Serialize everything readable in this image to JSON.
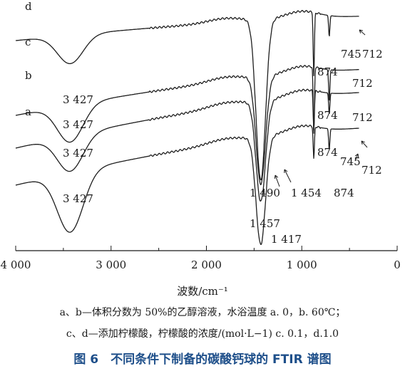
{
  "chart_data": {
    "type": "line",
    "title": "图 6　不同条件下制备的碳酸钙球的 FTIR 谱图",
    "xlabel": "波数/cm⁻¹",
    "ylabel": "",
    "xlim": [
      4000,
      0
    ],
    "x_ticks": [
      "4 000",
      "3 000",
      "2 000",
      "1 000",
      "0"
    ],
    "x_tick_values": [
      4000,
      3000,
      2000,
      1000,
      0
    ],
    "grid": false,
    "series": [
      {
        "name": "a",
        "peak_labels": [
          {
            "text": "3 427",
            "x": 3427
          },
          {
            "text": "1 417",
            "x": 1417
          },
          {
            "text": "874",
            "x": 874
          },
          {
            "text": "745",
            "x": 745
          },
          {
            "text": "712",
            "x": 712
          }
        ]
      },
      {
        "name": "b",
        "peak_labels": [
          {
            "text": "3 427",
            "x": 3427
          },
          {
            "text": "1 457",
            "x": 1457
          },
          {
            "text": "874",
            "x": 874
          },
          {
            "text": "712",
            "x": 712
          }
        ]
      },
      {
        "name": "c",
        "peak_labels": [
          {
            "text": "3 427",
            "x": 3427
          },
          {
            "text": "1 454",
            "x": 1454
          },
          {
            "text": "874",
            "x": 874
          },
          {
            "text": "712",
            "x": 712
          }
        ]
      },
      {
        "name": "d",
        "peak_labels": [
          {
            "text": "3 427",
            "x": 3427
          },
          {
            "text": "1 490",
            "x": 1490
          },
          {
            "text": "874",
            "x": 874
          },
          {
            "text": "745",
            "x": 745
          },
          {
            "text": "712",
            "x": 712
          }
        ]
      }
    ]
  },
  "captions": {
    "xlabel": "波数/cm⁻¹",
    "note1": "a、b—体积分数为 50%的乙醇溶液，水浴温度 a. 0，b. 60℃；",
    "note2": "c、d—添加柠檬酸，柠檬酸的浓度/(mol·L−1) c. 0.1，d.1.0",
    "figure_title": "图 6　不同条件下制备的碳酸钙球的 FTIR 谱图"
  }
}
